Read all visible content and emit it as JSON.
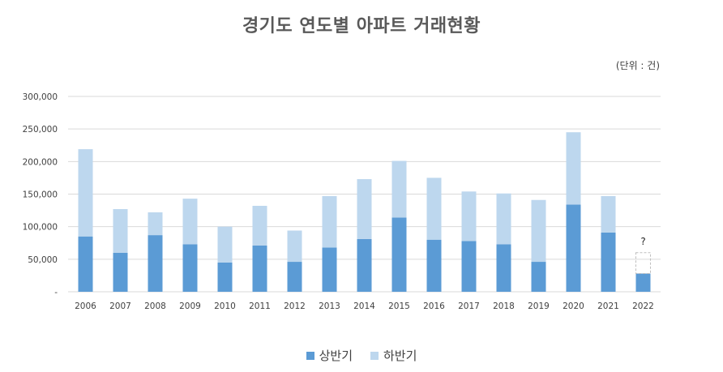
{
  "colors": {
    "first_half": "#5b9bd5",
    "second_half": "#bdd7ee",
    "grid": "#d9d9d9",
    "axis_text": "#404040",
    "unknown_box": "#bfbfbf"
  },
  "chart_data": {
    "type": "bar",
    "stacked": true,
    "title": "경기도 연도별 아파트 거래현황",
    "unit_label": "(단위 : 건)",
    "categories": [
      "2006",
      "2007",
      "2008",
      "2009",
      "2010",
      "2011",
      "2012",
      "2013",
      "2014",
      "2015",
      "2016",
      "2017",
      "2018",
      "2019",
      "2020",
      "2021",
      "2022"
    ],
    "series": [
      {
        "name": "상반기",
        "values": [
          85000,
          60000,
          87000,
          73000,
          45000,
          71000,
          46000,
          68000,
          81000,
          114000,
          80000,
          78000,
          73000,
          46000,
          134000,
          91000,
          28000
        ]
      },
      {
        "name": "하반기",
        "values": [
          134000,
          67000,
          35000,
          70000,
          55000,
          61000,
          48000,
          79000,
          92000,
          87000,
          95000,
          76000,
          78000,
          95000,
          111000,
          56000,
          null
        ]
      }
    ],
    "unknown": {
      "category": "2022",
      "label": "?",
      "estimated_value": 32000
    },
    "ylim": [
      0,
      300000
    ],
    "yticks": [
      0,
      50000,
      100000,
      150000,
      200000,
      250000,
      300000
    ],
    "ytick_labels": [
      "-",
      "50,000",
      "100,000",
      "150,000",
      "200,000",
      "250,000",
      "300,000"
    ],
    "grid": true,
    "legend_position": "bottom-center"
  }
}
